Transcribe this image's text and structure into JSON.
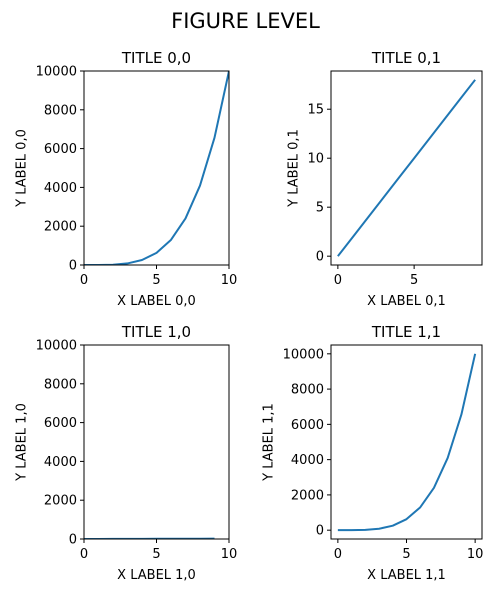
{
  "suptitle": "FIGURE LEVEL",
  "line_color": "#1f77b4",
  "chart_data": [
    {
      "type": "line",
      "title": "TITLE 0,0",
      "xlabel": "X LABEL 0,0",
      "ylabel": "Y LABEL 0,0",
      "xlim": [
        0,
        10
      ],
      "ylim": [
        0,
        10000
      ],
      "xticks": [
        0,
        5,
        10
      ],
      "yticks": [
        0,
        2000,
        4000,
        6000,
        8000,
        10000
      ],
      "x": [
        0,
        1,
        2,
        3,
        4,
        5,
        6,
        7,
        8,
        9,
        10
      ],
      "y": [
        0,
        1,
        16,
        81,
        256,
        625,
        1296,
        2401,
        4096,
        6561,
        10000
      ]
    },
    {
      "type": "line",
      "title": "TITLE 0,1",
      "xlabel": "X LABEL 0,1",
      "ylabel": "Y LABEL 0,1",
      "xlim": [
        -0.45,
        9.45
      ],
      "ylim": [
        -0.9,
        18.9
      ],
      "xticks": [
        0,
        5
      ],
      "yticks": [
        0,
        5,
        10,
        15
      ],
      "x": [
        0,
        1,
        2,
        3,
        4,
        5,
        6,
        7,
        8,
        9
      ],
      "y": [
        0,
        2,
        4,
        6,
        8,
        10,
        12,
        14,
        16,
        18
      ]
    },
    {
      "type": "line",
      "title": "TITLE 1,0",
      "xlabel": "X LABEL 1,0",
      "ylabel": "Y LABEL 1,0",
      "xlim": [
        0,
        10
      ],
      "ylim": [
        0,
        10000
      ],
      "xticks": [
        0,
        5,
        10
      ],
      "yticks": [
        0,
        2000,
        4000,
        6000,
        8000,
        10000
      ],
      "x": [
        0,
        1,
        2,
        3,
        4,
        5,
        6,
        7,
        8,
        9
      ],
      "y": [
        0,
        2,
        4,
        6,
        8,
        10,
        12,
        14,
        16,
        18
      ]
    },
    {
      "type": "line",
      "title": "TITLE 1,1",
      "xlabel": "X LABEL 1,1",
      "ylabel": "Y LABEL 1,1",
      "xlim": [
        -0.5,
        10.5
      ],
      "ylim": [
        -500,
        10500
      ],
      "xticks": [
        0,
        5,
        10
      ],
      "yticks": [
        0,
        2000,
        4000,
        6000,
        8000,
        10000
      ],
      "x": [
        0,
        1,
        2,
        3,
        4,
        5,
        6,
        7,
        8,
        9,
        10
      ],
      "y": [
        0,
        1,
        16,
        81,
        256,
        625,
        1296,
        2401,
        4096,
        6561,
        10000
      ]
    }
  ]
}
